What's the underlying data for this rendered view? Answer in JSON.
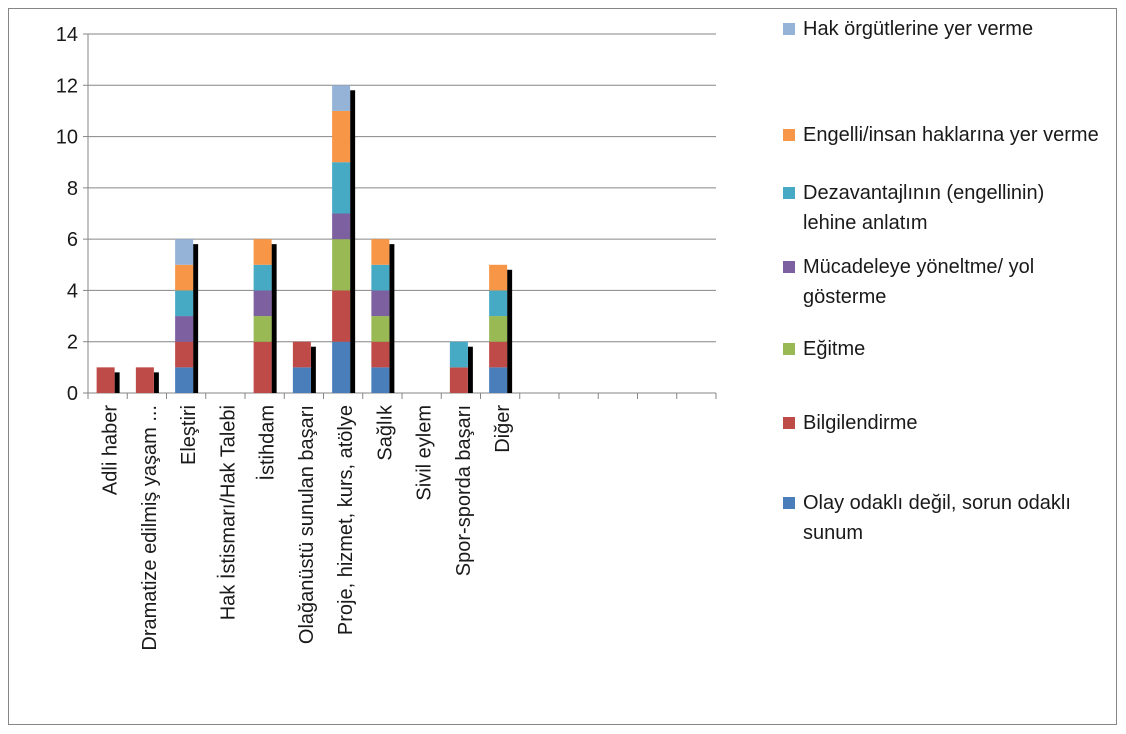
{
  "chart_data": {
    "type": "bar",
    "stacked": true,
    "title": "",
    "xlabel": "",
    "ylabel": "",
    "ylim": [
      0,
      14
    ],
    "yticks": [
      "0",
      "2",
      "4",
      "6",
      "8",
      "10",
      "12",
      "14"
    ],
    "grid": true,
    "legend_position": "right",
    "categories": [
      "Adli haber",
      "Dramatize edilmiş yaşam ...",
      "Eleştiri",
      "Hak İstismarı/Hak Talebi",
      "İstihdam",
      "Olağanüstü sunulan başarı",
      "Proje, hizmet, kurs, atölye",
      "Sağlık",
      "Sivil eylem",
      "Spor-sporda başarı",
      "Diğer",
      "",
      "",
      "",
      "",
      ""
    ],
    "series": [
      {
        "name": "Olay odaklı değil, sorun odaklı sunum",
        "color": "#4a7ebb",
        "values": [
          0,
          0,
          1,
          0,
          0,
          1,
          2,
          1,
          0,
          0,
          1,
          0,
          0,
          0,
          0,
          0
        ]
      },
      {
        "name": "Bilgilendirme",
        "color": "#be4b48",
        "values": [
          1,
          1,
          1,
          0,
          2,
          1,
          2,
          1,
          0,
          1,
          1,
          0,
          0,
          0,
          0,
          0
        ]
      },
      {
        "name": "Eğitme",
        "color": "#98b954",
        "values": [
          0,
          0,
          0,
          0,
          1,
          0,
          2,
          1,
          0,
          0,
          1,
          0,
          0,
          0,
          0,
          0
        ]
      },
      {
        "name": "Mücadeleye yöneltme/ yol gösterme",
        "color": "#7d60a0",
        "values": [
          0,
          0,
          1,
          0,
          1,
          0,
          1,
          1,
          0,
          0,
          0,
          0,
          0,
          0,
          0,
          0
        ]
      },
      {
        "name": "Dezavantajlının (engellinin) lehine anlatım",
        "color": "#46aac5",
        "values": [
          0,
          0,
          1,
          0,
          1,
          0,
          2,
          1,
          0,
          1,
          1,
          0,
          0,
          0,
          0,
          0
        ]
      },
      {
        "name": "Engelli/insan haklarına yer verme",
        "color": "#f79646",
        "values": [
          0,
          0,
          1,
          0,
          1,
          0,
          2,
          1,
          0,
          0,
          1,
          0,
          0,
          0,
          0,
          0
        ]
      },
      {
        "name": "Hak örgütlerine yer verme",
        "color": "#95b3d7",
        "values": [
          0,
          0,
          1,
          0,
          0,
          0,
          1,
          0,
          0,
          0,
          0,
          0,
          0,
          0,
          0,
          0
        ]
      }
    ]
  }
}
